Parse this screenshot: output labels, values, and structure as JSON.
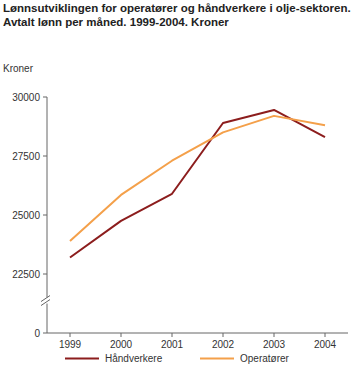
{
  "chart_data": {
    "type": "line",
    "title": "Lønnsutviklingen for operatører og håndverkere i olje-sektoren. Avtalt lønn per måned. 1999-2004. Kroner",
    "y_label": "Kroner",
    "categories": [
      "1999",
      "2000",
      "2001",
      "2002",
      "2003",
      "2004"
    ],
    "series": [
      {
        "name": "Håndverkere",
        "color": "#8c1d1d",
        "values": [
          23200,
          24750,
          25900,
          28900,
          29450,
          28300
        ]
      },
      {
        "name": "Operatører",
        "color": "#f4a04a",
        "values": [
          23900,
          25850,
          27300,
          28500,
          29200,
          28800
        ]
      }
    ],
    "ylim": [
      0,
      30000
    ],
    "yticks": [
      0,
      22500,
      25000,
      27500,
      30000
    ],
    "grid": false,
    "legend": "bottom"
  }
}
